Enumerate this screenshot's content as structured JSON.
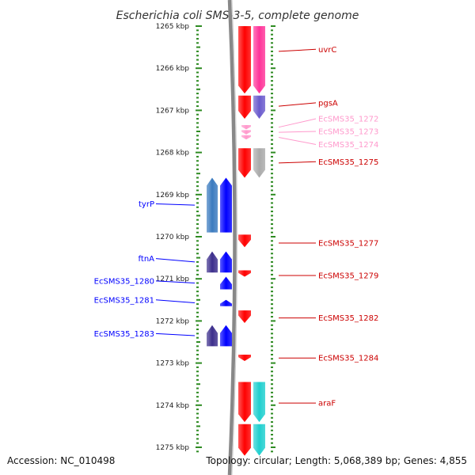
{
  "title": "Escherichia coli SMS-3-5, complete genome",
  "footer": {
    "accession": "Accession: NC_010498",
    "summary": "Topology: circular; Length: 5,068,389 bp; Genes: 4,855"
  },
  "colors": {
    "red": "#ff0000",
    "red_dark": "#cc0000",
    "pink": "#ff3399",
    "light_pink": "#ff99cc",
    "blue": "#0000ff",
    "steel_blue": "#3a7abf",
    "indigo": "#3c2e8c",
    "violet": "#6a5acd",
    "gray": "#aaaaaa",
    "cyan": "#1fcfcf",
    "backbone": "#888888",
    "ruler": "#2e8b22"
  },
  "ruler": {
    "start_kbp": 1265,
    "end_kbp": 1275,
    "labels": [
      "1265 kbp",
      "1266 kbp",
      "1267 kbp",
      "1268 kbp",
      "1269 kbp",
      "1270 kbp",
      "1271 kbp",
      "1272 kbp",
      "1273 kbp",
      "1274 kbp",
      "1275 kbp"
    ]
  },
  "tracks": {
    "forward_cds": [
      {
        "start": 1265.0,
        "end": 1266.6
      },
      {
        "start": 1266.65,
        "end": 1267.2
      },
      {
        "start": 1267.9,
        "end": 1268.6
      },
      {
        "start": 1269.95,
        "end": 1270.25
      },
      {
        "start": 1270.8,
        "end": 1270.95
      },
      {
        "start": 1271.75,
        "end": 1272.05
      },
      {
        "start": 1272.8,
        "end": 1272.95
      },
      {
        "start": 1273.45,
        "end": 1274.4
      },
      {
        "start": 1274.45,
        "end": 1275.2
      }
    ],
    "forward_features": [
      {
        "start": 1265.0,
        "end": 1266.6,
        "color": "pink"
      },
      {
        "start": 1266.65,
        "end": 1267.2,
        "color": "violet"
      },
      {
        "start": 1267.35,
        "end": 1267.45,
        "color": "light_pink"
      },
      {
        "start": 1267.47,
        "end": 1267.57,
        "color": "light_pink"
      },
      {
        "start": 1267.59,
        "end": 1267.69,
        "color": "light_pink"
      },
      {
        "start": 1267.9,
        "end": 1268.6,
        "color": "gray"
      },
      {
        "start": 1273.45,
        "end": 1274.4,
        "color": "cyan"
      },
      {
        "start": 1274.45,
        "end": 1275.2,
        "color": "cyan"
      }
    ],
    "reverse_features": [
      {
        "start": 1268.6,
        "end": 1269.9,
        "color": "steel_blue"
      },
      {
        "start": 1270.35,
        "end": 1270.85,
        "color": "indigo"
      },
      {
        "start": 1272.1,
        "end": 1272.6,
        "color": "indigo"
      }
    ],
    "reverse_cds": [
      {
        "start": 1268.6,
        "end": 1269.9
      },
      {
        "start": 1270.35,
        "end": 1270.85
      },
      {
        "start": 1270.95,
        "end": 1271.25
      },
      {
        "start": 1271.5,
        "end": 1271.65
      },
      {
        "start": 1272.1,
        "end": 1272.6
      }
    ]
  },
  "labels_right": [
    {
      "text": "uvrC",
      "pos": 1265.6,
      "label_pos": 1265.55,
      "color": "red_dark"
    },
    {
      "text": "pgsA",
      "pos": 1266.9,
      "label_pos": 1266.82,
      "color": "red_dark"
    },
    {
      "text": "EcSMS35_1272",
      "pos": 1267.4,
      "label_pos": 1267.2,
      "color": "light_pink"
    },
    {
      "text": "EcSMS35_1273",
      "pos": 1267.52,
      "label_pos": 1267.5,
      "color": "light_pink"
    },
    {
      "text": "EcSMS35_1274",
      "pos": 1267.64,
      "label_pos": 1267.81,
      "color": "light_pink"
    },
    {
      "text": "EcSMS35_1275",
      "pos": 1268.25,
      "label_pos": 1268.22,
      "color": "red_dark"
    },
    {
      "text": "EcSMS35_1277",
      "pos": 1270.15,
      "label_pos": 1270.15,
      "color": "red_dark"
    },
    {
      "text": "EcSMS35_1279",
      "pos": 1270.92,
      "label_pos": 1270.92,
      "color": "red_dark"
    },
    {
      "text": "EcSMS35_1282",
      "pos": 1271.93,
      "label_pos": 1271.93,
      "color": "red_dark"
    },
    {
      "text": "EcSMS35_1284",
      "pos": 1272.88,
      "label_pos": 1272.88,
      "color": "red_dark"
    },
    {
      "text": "araF",
      "pos": 1273.95,
      "label_pos": 1273.95,
      "color": "red_dark"
    }
  ],
  "labels_left": [
    {
      "text": "tyrP",
      "pos": 1269.25,
      "label_pos": 1269.22,
      "color": "blue"
    },
    {
      "text": "ftnA",
      "pos": 1270.6,
      "label_pos": 1270.52,
      "color": "blue"
    },
    {
      "text": "EcSMS35_1280",
      "pos": 1271.1,
      "label_pos": 1271.05,
      "color": "blue"
    },
    {
      "text": "EcSMS35_1281",
      "pos": 1271.57,
      "label_pos": 1271.5,
      "color": "blue"
    },
    {
      "text": "EcSMS35_1283",
      "pos": 1272.35,
      "label_pos": 1272.3,
      "color": "blue"
    }
  ]
}
